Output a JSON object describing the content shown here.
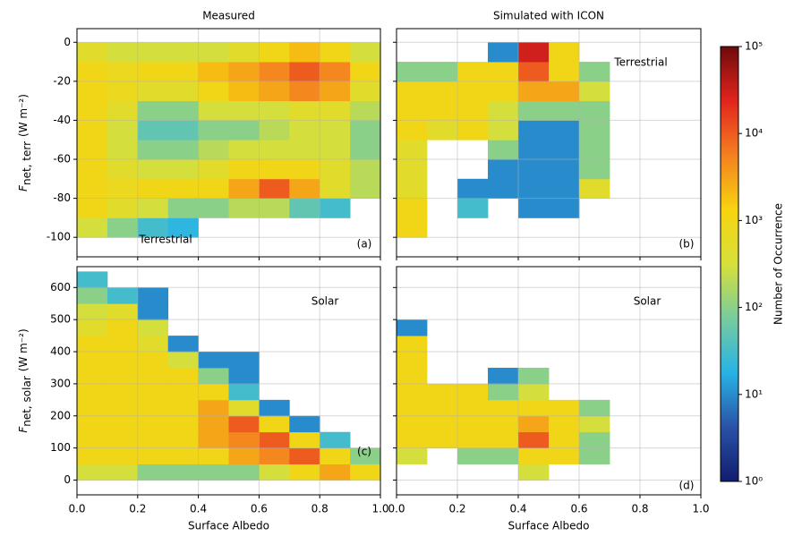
{
  "chart_data": [
    {
      "type": "heatmap",
      "title": "Measured",
      "ylabel": {
        "symbol": "F",
        "sub": "net, terr",
        "unit": "(W m⁻²)"
      },
      "annotation": "Terrestrial",
      "panel_label": "(a)",
      "xlim": [
        0,
        1
      ],
      "ylim": [
        -110,
        7
      ],
      "xticks": [
        {
          "value": 0,
          "label": "0.0"
        },
        0.2,
        0.4,
        0.6,
        0.8,
        {
          "value": 1,
          "label": "1.0"
        }
      ],
      "yticks": [
        0,
        -20,
        -40,
        -60,
        -80,
        -100
      ],
      "grid": true,
      "x_bins": [
        0,
        0.1,
        0.2,
        0.3,
        0.4,
        0.5,
        0.6,
        0.7,
        0.8,
        0.9,
        1
      ],
      "y_bins": [
        -100,
        -90,
        -80,
        -70,
        -60,
        -50,
        -40,
        -30,
        -20,
        -10,
        0
      ],
      "counts": [
        [
          300,
          100,
          30,
          20,
          null,
          null,
          null,
          null,
          null,
          null
        ],
        [
          1000,
          500,
          300,
          100,
          100,
          200,
          200,
          50,
          30,
          null
        ],
        [
          1000,
          800,
          1000,
          1000,
          1000,
          3000,
          10000,
          3000,
          500,
          200
        ],
        [
          1000,
          500,
          300,
          300,
          500,
          1000,
          1000,
          1000,
          500,
          200
        ],
        [
          1000,
          300,
          100,
          100,
          200,
          300,
          300,
          300,
          300,
          100
        ],
        [
          1000,
          300,
          50,
          50,
          100,
          100,
          200,
          300,
          300,
          100
        ],
        [
          1000,
          500,
          100,
          100,
          300,
          300,
          300,
          500,
          500,
          200
        ],
        [
          1000,
          800,
          500,
          500,
          1000,
          2000,
          3000,
          5000,
          3000,
          500
        ],
        [
          1000,
          800,
          1000,
          1000,
          2000,
          3000,
          5000,
          10000,
          5000,
          1000
        ],
        [
          500,
          300,
          300,
          300,
          300,
          500,
          1000,
          2000,
          1000,
          300
        ]
      ]
    },
    {
      "type": "heatmap",
      "title": "Simulated with ICON",
      "annotation": "Terrestrial",
      "panel_label": "(b)",
      "xlim": [
        0,
        1
      ],
      "ylim": [
        -110,
        7
      ],
      "xticks": [
        {
          "value": 0,
          "label": "0.0"
        },
        0.2,
        0.4,
        0.6,
        0.8,
        {
          "value": 1,
          "label": "1.0"
        }
      ],
      "yticks": [
        0,
        -20,
        -40,
        -60,
        -80,
        -100
      ],
      "grid": true,
      "x_bins": [
        0,
        0.1,
        0.2,
        0.3,
        0.4,
        0.5,
        0.6,
        0.7
      ],
      "y_bins": [
        -100,
        -90,
        -80,
        -70,
        -60,
        -50,
        -40,
        -30,
        -20,
        -10,
        0
      ],
      "counts": [
        [
          1000,
          null,
          null,
          null,
          null,
          null,
          null
        ],
        [
          1000,
          null,
          30,
          null,
          10,
          10,
          null
        ],
        [
          500,
          null,
          10,
          10,
          10,
          10,
          500
        ],
        [
          500,
          null,
          null,
          10,
          10,
          10,
          100
        ],
        [
          500,
          null,
          null,
          100,
          10,
          10,
          100
        ],
        [
          1000,
          500,
          1000,
          300,
          10,
          10,
          100
        ],
        [
          1000,
          1000,
          1000,
          300,
          100,
          100,
          100
        ],
        [
          1000,
          1000,
          1000,
          1000,
          3000,
          3000,
          300
        ],
        [
          100,
          100,
          1000,
          1000,
          10000,
          1000,
          100
        ],
        [
          null,
          null,
          null,
          10,
          30000,
          1000,
          null
        ]
      ]
    },
    {
      "type": "heatmap",
      "xlabel": "Surface Albedo",
      "ylabel": {
        "symbol": "F",
        "sub": "net, solar",
        "unit": "(W m⁻²)"
      },
      "annotation": "Solar",
      "panel_label": "(c)",
      "xlim": [
        0,
        1
      ],
      "ylim": [
        -46,
        665
      ],
      "xticks": [
        {
          "value": 0,
          "label": "0.0"
        },
        0.2,
        0.4,
        0.6,
        0.8,
        {
          "value": 1,
          "label": "1.0"
        }
      ],
      "yticks": [
        0,
        100,
        200,
        300,
        400,
        500,
        600
      ],
      "grid": true,
      "x_bins": [
        0,
        0.1,
        0.2,
        0.3,
        0.4,
        0.5,
        0.6,
        0.7,
        0.8,
        0.9,
        1
      ],
      "y_bins": [
        0,
        50,
        100,
        150,
        200,
        250,
        300,
        350,
        400,
        450,
        500,
        550,
        600,
        650
      ],
      "counts": [
        [
          300,
          300,
          100,
          100,
          100,
          100,
          300,
          1000,
          3000,
          1000
        ],
        [
          1000,
          1000,
          1000,
          1000,
          1000,
          3000,
          5000,
          10000,
          1000,
          100
        ],
        [
          1000,
          1000,
          1000,
          1000,
          3000,
          5000,
          10000,
          1000,
          30,
          null
        ],
        [
          1000,
          1000,
          1000,
          1000,
          3000,
          10000,
          1000,
          10,
          null,
          null
        ],
        [
          1000,
          1000,
          1000,
          1000,
          3000,
          500,
          10,
          null,
          null,
          null
        ],
        [
          1000,
          1000,
          1000,
          1000,
          1000,
          30,
          null,
          null,
          null,
          null
        ],
        [
          1000,
          1000,
          1000,
          1000,
          100,
          10,
          null,
          null,
          null,
          null
        ],
        [
          1000,
          1000,
          1000,
          300,
          10,
          10,
          null,
          null,
          null,
          null
        ],
        [
          1000,
          1000,
          500,
          10,
          null,
          null,
          null,
          null,
          null,
          null
        ],
        [
          500,
          1000,
          300,
          null,
          null,
          null,
          null,
          null,
          null,
          null
        ],
        [
          300,
          500,
          10,
          null,
          null,
          null,
          null,
          null,
          null,
          null
        ],
        [
          100,
          30,
          10,
          null,
          null,
          null,
          null,
          null,
          null,
          null
        ],
        [
          30,
          null,
          null,
          null,
          null,
          null,
          null,
          null,
          null,
          null
        ]
      ]
    },
    {
      "type": "heatmap",
      "xlabel": "Surface Albedo",
      "annotation": "Solar",
      "panel_label": "(d)",
      "xlim": [
        0,
        1
      ],
      "ylim": [
        -46,
        665
      ],
      "xticks": [
        {
          "value": 0,
          "label": "0.0"
        },
        0.2,
        0.4,
        0.6,
        0.8,
        {
          "value": 1,
          "label": "1.0"
        }
      ],
      "yticks": [
        0,
        100,
        200,
        300,
        400,
        500,
        600
      ],
      "grid": true,
      "x_bins": [
        0,
        0.1,
        0.2,
        0.3,
        0.4,
        0.5,
        0.6,
        0.7
      ],
      "y_bins": [
        0,
        50,
        100,
        150,
        200,
        250,
        300,
        350,
        400,
        450,
        500
      ],
      "counts": [
        [
          null,
          null,
          null,
          null,
          300,
          null,
          null
        ],
        [
          300,
          null,
          100,
          100,
          1000,
          1000,
          100
        ],
        [
          1000,
          1000,
          1000,
          1000,
          10000,
          1000,
          100
        ],
        [
          1000,
          1000,
          1000,
          1000,
          3000,
          1000,
          300
        ],
        [
          1000,
          1000,
          1000,
          1000,
          1000,
          1000,
          100
        ],
        [
          1000,
          1000,
          1000,
          100,
          300,
          null,
          null
        ],
        [
          1000,
          null,
          null,
          10,
          100,
          null,
          null
        ],
        [
          1000,
          null,
          null,
          null,
          null,
          null,
          null
        ],
        [
          1000,
          null,
          null,
          null,
          null,
          null,
          null
        ],
        [
          10,
          null,
          null,
          null,
          null,
          null,
          null
        ]
      ]
    }
  ],
  "colorbar": {
    "label": "Number of Occurrence",
    "log": true,
    "lim": [
      1,
      100000
    ],
    "ticks": [
      {
        "value": 1,
        "label": "10⁰"
      },
      {
        "value": 10,
        "label": "10¹"
      },
      {
        "value": 100,
        "label": "10²"
      },
      {
        "value": 1000,
        "label": "10³"
      },
      {
        "value": 10000,
        "label": "10⁴"
      },
      {
        "value": 100000,
        "label": "10⁵"
      }
    ],
    "colors": [
      "#111d6e",
      "#2a52a6",
      "#27b3e6",
      "#78cc9c",
      "#d7e03a",
      "#f7d40f",
      "#f4801f",
      "#e3241e",
      "#6e0a0a"
    ]
  }
}
